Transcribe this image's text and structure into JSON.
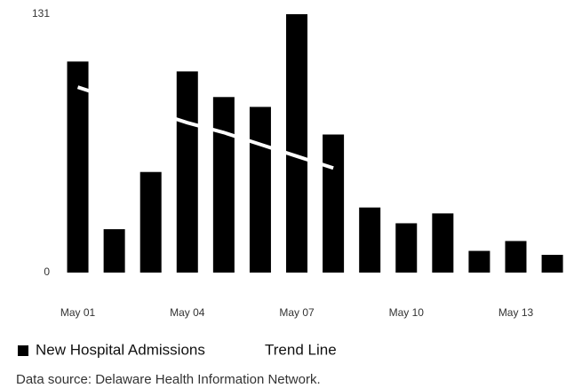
{
  "chart_data": {
    "type": "bar",
    "categories": [
      "May 01",
      null,
      null,
      "May 04",
      null,
      null,
      "May 07",
      null,
      null,
      "May 10",
      null,
      null,
      "May 13",
      null
    ],
    "series": [
      {
        "name": "New Hospital Admissions",
        "type": "bar",
        "color": "#000000",
        "values": [
          107,
          22,
          51,
          102,
          89,
          84,
          131,
          70,
          33,
          25,
          30,
          11,
          16,
          9
        ]
      },
      {
        "name": "Trend Line",
        "type": "line",
        "color": "#ffffff",
        "values": [
          94,
          88,
          82,
          76,
          71,
          65,
          59,
          53,
          null,
          null,
          null,
          null,
          null,
          null
        ]
      }
    ],
    "ylim": [
      0,
      131
    ],
    "yticks": [
      0,
      131
    ],
    "grid": false,
    "source": "Data source: Delaware Health Information Network."
  }
}
